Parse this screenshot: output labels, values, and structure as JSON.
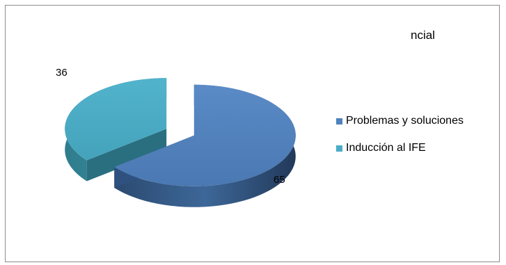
{
  "chart_data": {
    "type": "pie",
    "title": "ncial",
    "categories": [
      "Problemas y soluciones",
      "Inducción al IFE"
    ],
    "values": [
      65,
      36
    ],
    "colors": [
      "#4f81bd",
      "#4bacc6"
    ],
    "data_labels": [
      "65",
      "36"
    ],
    "legend_position": "right",
    "exploded": true,
    "three_d": true
  }
}
